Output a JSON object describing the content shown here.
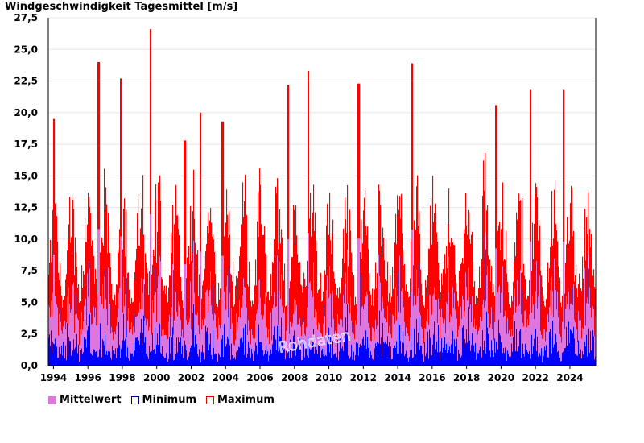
{
  "chart_data": {
    "type": "bar",
    "title": "Windgeschwindigkeit Tagesmittel [m/s]",
    "xlabel": "",
    "ylabel": "",
    "x_range": [
      1993.7,
      2025.5
    ],
    "ylim": [
      0,
      27.5
    ],
    "y_ticks": [
      "0,0",
      "2,5",
      "5,0",
      "7,5",
      "10,0",
      "12,5",
      "15,0",
      "17,5",
      "20,0",
      "22,5",
      "25,0",
      "27,5"
    ],
    "x_ticks": [
      "1994",
      "1996",
      "1998",
      "2000",
      "2002",
      "2004",
      "2006",
      "2008",
      "2010",
      "2012",
      "2014",
      "2016",
      "2018",
      "2020",
      "2022",
      "2024"
    ],
    "annotation": "Rohdaten",
    "grid": true,
    "legend_position": "bottom-left",
    "series": [
      {
        "name": "Mittelwert",
        "color": "#dd77dd",
        "fill": "#dd77dd",
        "stroke": "#dd77dd"
      },
      {
        "name": "Minimum",
        "color": "#0000ff",
        "fill": "#ffffff",
        "stroke": "#000088"
      },
      {
        "name": "Maximum",
        "color": "#ff0000",
        "fill": "#ffffff",
        "stroke": "#dd0000"
      }
    ],
    "peaks": [
      {
        "x": 1994.0,
        "max": 19.5
      },
      {
        "x": 1996.6,
        "max": 24.0
      },
      {
        "x": 1997.9,
        "max": 22.7
      },
      {
        "x": 1999.6,
        "max": 26.6
      },
      {
        "x": 2001.6,
        "max": 17.8
      },
      {
        "x": 2002.5,
        "max": 20.0
      },
      {
        "x": 2003.8,
        "max": 19.3
      },
      {
        "x": 2007.6,
        "max": 22.2
      },
      {
        "x": 2008.8,
        "max": 23.3
      },
      {
        "x": 2011.7,
        "max": 22.3
      },
      {
        "x": 2014.8,
        "max": 23.9
      },
      {
        "x": 2019.7,
        "max": 20.6
      },
      {
        "x": 2021.7,
        "max": 21.8
      },
      {
        "x": 2023.6,
        "max": 21.8
      }
    ]
  }
}
